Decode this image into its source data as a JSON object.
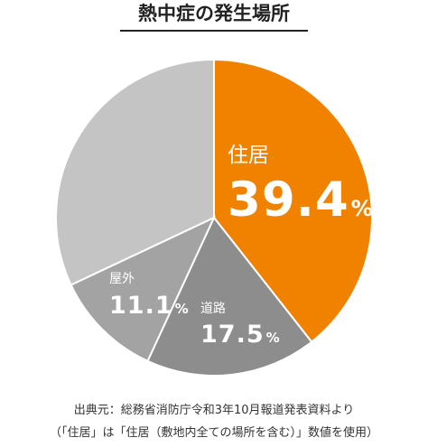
{
  "title": "熱中症の発生場所",
  "colors": {
    "residence": "#f08200",
    "outdoor": "#a3a3a3",
    "road": "#8d8d8d",
    "others": "#c4c4c4",
    "label_text": "#ffffff"
  },
  "chart_data": {
    "type": "pie",
    "title": "熱中症の発生場所",
    "start_angle_deg": 0,
    "direction": "clockwise",
    "slices": [
      {
        "label": "住居",
        "value": 39.4,
        "value_text": "39.4",
        "unit": "%",
        "color": "#f08200"
      },
      {
        "label": "道路",
        "value": 17.5,
        "value_text": "17.5",
        "unit": "%",
        "color": "#8d8d8d"
      },
      {
        "label": "屋外",
        "value": 11.1,
        "value_text": "11.1",
        "unit": "%",
        "color": "#a3a3a3"
      },
      {
        "label": "",
        "value": 32.0,
        "value_text": "",
        "unit": "",
        "color": "#c4c4c4"
      }
    ]
  },
  "source": {
    "line1": "出典元：総務省消防庁令和3年10月報道発表資料より",
    "line2": "（「住居」は「住居（敷地内全ての場所を含む）」数値を使用）"
  }
}
